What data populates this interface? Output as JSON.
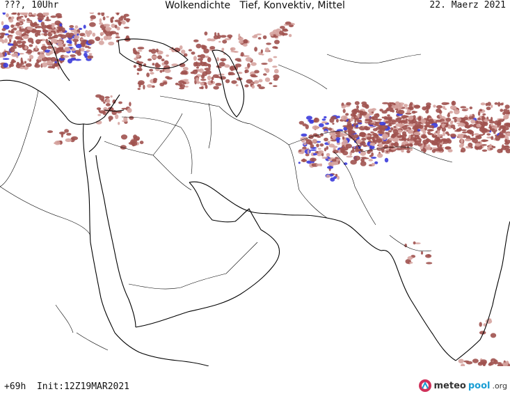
{
  "header": {
    "left": "???, 10Uhr",
    "title": "Wolkendichte   Tief, Konvektiv, Mittel",
    "date": "22. Maerz 2021"
  },
  "footer": {
    "run": "+69h  Init:12Z19MAR2021"
  },
  "logo": {
    "name_a": "meteo",
    "name_b": "pool",
    "tld": ".org"
  },
  "colors": {
    "cloud": "#a0524f",
    "cloud_light": "#d6a4a0",
    "convective": "#3b3bdb",
    "border": "#000000",
    "logo_icon": "#d0315a"
  }
}
